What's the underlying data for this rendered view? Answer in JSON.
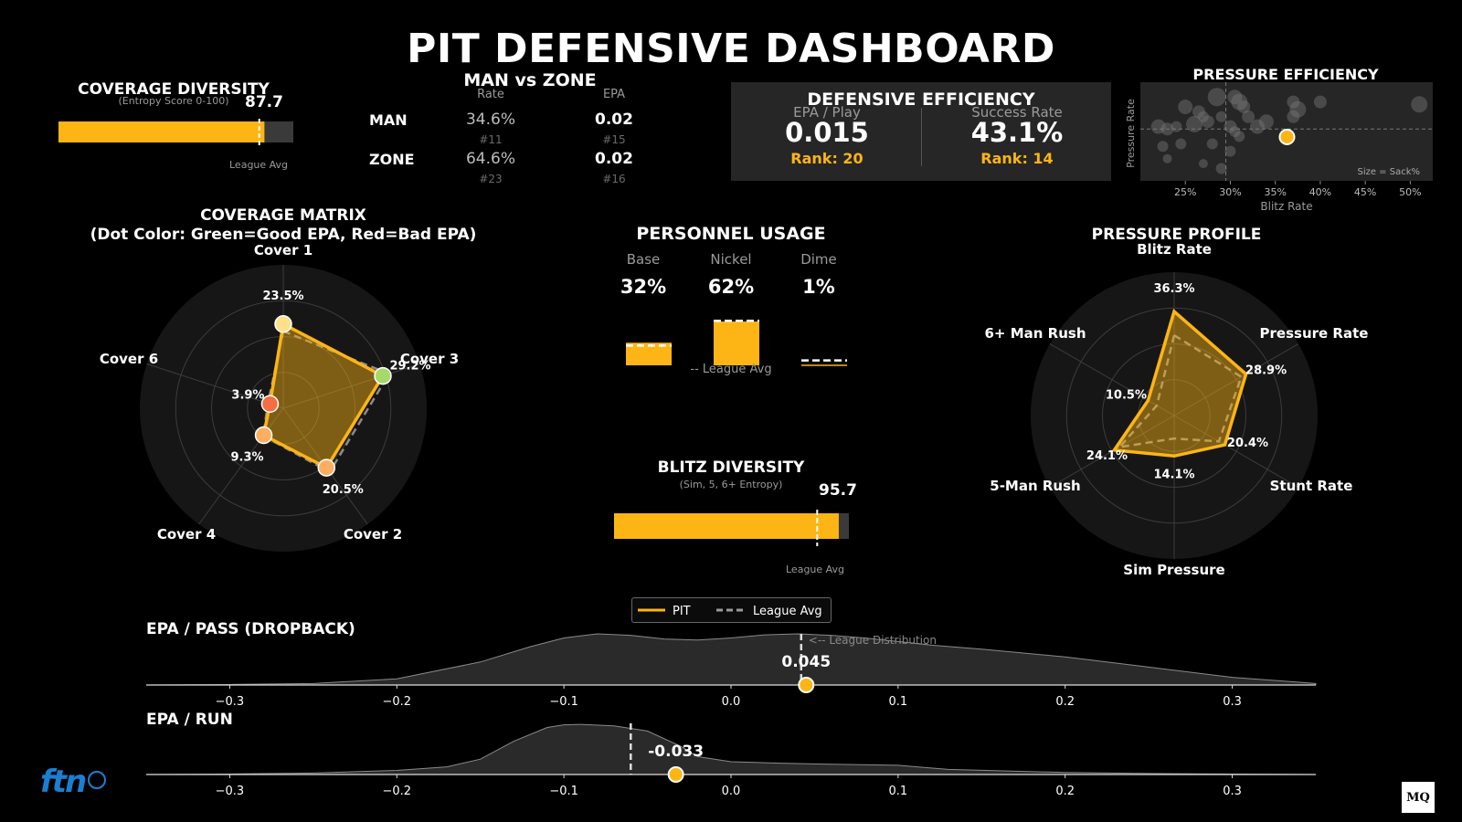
{
  "title": "PIT DEFENSIVE DASHBOARD",
  "colors": {
    "accent": "#FDB515",
    "good": "#a6d96a",
    "bad": "#f46d43",
    "bg": "#000000"
  },
  "coverage_diversity": {
    "title": "COVERAGE DIVERSITY",
    "subtitle": "(Entropy Score 0-100)",
    "value": "87.7",
    "score": 87.7,
    "league_avg": 85.5,
    "league_label": "League Avg"
  },
  "man_zone": {
    "title": "MAN vs ZONE",
    "col_rate": "Rate",
    "col_epa": "EPA",
    "rows": [
      {
        "label": "MAN",
        "rate": "34.6%",
        "rate_rank": "#11",
        "epa": "0.02",
        "epa_rank": "#15"
      },
      {
        "label": "ZONE",
        "rate": "64.6%",
        "rate_rank": "#23",
        "epa": "0.02",
        "epa_rank": "#16"
      }
    ]
  },
  "defensive_efficiency": {
    "title": "DEFENSIVE EFFICIENCY",
    "epa_label": "EPA / Play",
    "epa_value": "0.015",
    "epa_rank": "Rank: 20",
    "sr_label": "Success Rate",
    "sr_value": "43.1%",
    "sr_rank": "Rank: 14"
  },
  "pressure_efficiency": {
    "title": "PRESSURE EFFICIENCY",
    "xlabel": "Blitz Rate",
    "ylabel": "Pressure Rate",
    "note": "Size = Sack%",
    "xticks": [
      "25%",
      "30%",
      "35%",
      "40%",
      "45%",
      "50%"
    ]
  },
  "coverage_matrix": {
    "title": "COVERAGE MATRIX",
    "subtitle": "(Dot Color: Green=Good EPA, Red=Bad EPA)"
  },
  "personnel": {
    "title": "PERSONNEL USAGE",
    "items": [
      {
        "label": "Base",
        "value": "32%"
      },
      {
        "label": "Nickel",
        "value": "62%"
      },
      {
        "label": "Dime",
        "value": "1%"
      }
    ],
    "league_label": "-- League Avg"
  },
  "blitz_diversity": {
    "title": "BLITZ DIVERSITY",
    "subtitle": "(Sim, 5, 6+ Entropy)",
    "value": "95.7",
    "score": 95.7,
    "league_avg": 86.5,
    "league_label": "League Avg"
  },
  "pressure_profile": {
    "title": "PRESSURE PROFILE"
  },
  "legend": {
    "pit": "PIT",
    "league": "League Avg"
  },
  "epa_pass": {
    "title": "EPA / PASS (DROPBACK)",
    "value": "0.045",
    "annotation": "<-- League Distribution"
  },
  "epa_run": {
    "title": "EPA / RUN",
    "value": "-0.033"
  },
  "logos": {
    "ftn": "ftn",
    "mq": "MQ"
  },
  "chart_data": [
    {
      "type": "bar",
      "name": "coverage-diversity",
      "categories": [
        "PIT"
      ],
      "values": [
        87.7
      ],
      "league_avg": 85.5,
      "xlim": [
        0,
        100
      ]
    },
    {
      "type": "scatter",
      "name": "pressure-efficiency",
      "xlabel": "Blitz Rate",
      "ylabel": "Pressure Rate",
      "xlim": [
        20,
        52.5
      ],
      "ylim": [
        20,
        40
      ],
      "ref_x": 29.5,
      "ref_y": 30.5,
      "points": [
        [
          22,
          31
        ],
        [
          23,
          30.5
        ],
        [
          24,
          31
        ],
        [
          25,
          35
        ],
        [
          26,
          31.5
        ],
        [
          26.5,
          34
        ],
        [
          27,
          33
        ],
        [
          27.5,
          32
        ],
        [
          28.5,
          37
        ],
        [
          29,
          33
        ],
        [
          30.5,
          37
        ],
        [
          31,
          36
        ],
        [
          31.5,
          35
        ],
        [
          30,
          31
        ],
        [
          30.5,
          30
        ],
        [
          31,
          29
        ],
        [
          32,
          33
        ],
        [
          33,
          31
        ],
        [
          34,
          32
        ],
        [
          37,
          33
        ],
        [
          37,
          36
        ],
        [
          37.5,
          34.5
        ],
        [
          40,
          36
        ],
        [
          51,
          35.5
        ],
        [
          22.5,
          27
        ],
        [
          24.5,
          27.5
        ],
        [
          28,
          27.5
        ],
        [
          30,
          26
        ],
        [
          27,
          23.5
        ],
        [
          23,
          24.5
        ],
        [
          29,
          22.5
        ]
      ],
      "highlight": {
        "name": "PIT",
        "x": 36.3,
        "y": 28.9
      }
    },
    {
      "type": "radar",
      "name": "coverage-matrix",
      "axes": [
        "Cover 1",
        "Cover 3",
        "Cover 2",
        "Cover 4",
        "Cover 6"
      ],
      "rmax": 40,
      "series": [
        {
          "name": "PIT",
          "values": [
            23.5,
            29.2,
            20.5,
            9.3,
            3.9
          ],
          "labels": [
            "23.5%",
            "29.2%",
            "20.5%",
            "9.3%",
            "3.9%"
          ]
        },
        {
          "name": "League Avg",
          "values": [
            21.5,
            31,
            22,
            9.5,
            4.5
          ]
        }
      ],
      "dot_colors": [
        "#fee08b",
        "#a6d96a",
        "#fdae61",
        "#fdae61",
        "#f46d43"
      ]
    },
    {
      "type": "bar",
      "name": "personnel-usage",
      "categories": [
        "Base",
        "Nickel",
        "Dime"
      ],
      "values": [
        32,
        62,
        1
      ],
      "league_avg": [
        28,
        63,
        7
      ]
    },
    {
      "type": "bar",
      "name": "blitz-diversity",
      "categories": [
        "PIT"
      ],
      "values": [
        95.7
      ],
      "league_avg": 86.5,
      "xlim": [
        0,
        100
      ]
    },
    {
      "type": "radar",
      "name": "pressure-profile",
      "axes": [
        "Blitz Rate",
        "Pressure Rate",
        "Stunt Rate",
        "Sim Pressure",
        "5-Man Rush",
        "6+ Man Rush"
      ],
      "rmax": 50,
      "series": [
        {
          "name": "PIT",
          "values": [
            36.3,
            28.9,
            20.4,
            14.1,
            24.1,
            10.5
          ],
          "labels": [
            "36.3%",
            "28.9%",
            "20.4%",
            "14.1%",
            "24.1%",
            "10.5%"
          ]
        },
        {
          "name": "League Avg",
          "values": [
            28,
            27,
            18,
            8,
            22,
            7
          ]
        }
      ]
    },
    {
      "type": "area",
      "name": "epa-pass-distribution",
      "xlim": [
        -0.35,
        0.35
      ],
      "xticks": [
        "−0.3",
        "−0.2",
        "−0.1",
        "0.0",
        "0.1",
        "0.2",
        "0.3"
      ],
      "tick_values": [
        -0.3,
        -0.2,
        -0.1,
        0.0,
        0.1,
        0.2,
        0.3
      ],
      "x": [
        -0.35,
        -0.3,
        -0.25,
        -0.2,
        -0.15,
        -0.12,
        -0.1,
        -0.08,
        -0.06,
        -0.04,
        -0.02,
        0.0,
        0.02,
        0.04,
        0.06,
        0.08,
        0.1,
        0.12,
        0.15,
        0.2,
        0.25,
        0.3,
        0.35
      ],
      "density": [
        0,
        0.01,
        0.03,
        0.12,
        0.45,
        0.75,
        0.92,
        1.0,
        0.97,
        0.9,
        0.88,
        0.92,
        0.98,
        1.0,
        0.97,
        0.92,
        0.85,
        0.78,
        0.7,
        0.55,
        0.35,
        0.15,
        0.03
      ],
      "league_avg": 0.042,
      "pit": 0.045
    },
    {
      "type": "area",
      "name": "epa-run-distribution",
      "xlim": [
        -0.35,
        0.35
      ],
      "xticks": [
        "−0.3",
        "−0.2",
        "−0.1",
        "0.0",
        "0.1",
        "0.2",
        "0.3"
      ],
      "tick_values": [
        -0.3,
        -0.2,
        -0.1,
        0.0,
        0.1,
        0.2,
        0.3
      ],
      "x": [
        -0.35,
        -0.3,
        -0.25,
        -0.2,
        -0.17,
        -0.15,
        -0.13,
        -0.11,
        -0.1,
        -0.09,
        -0.07,
        -0.05,
        -0.03,
        -0.02,
        0.0,
        0.03,
        0.06,
        0.1,
        0.13,
        0.2,
        0.25,
        0.3,
        0.35
      ],
      "density": [
        0,
        0.01,
        0.03,
        0.08,
        0.15,
        0.3,
        0.65,
        0.92,
        0.97,
        0.98,
        0.95,
        0.85,
        0.55,
        0.35,
        0.25,
        0.22,
        0.2,
        0.18,
        0.1,
        0.04,
        0.02,
        0.01,
        0
      ],
      "league_avg": -0.06,
      "pit": -0.033
    }
  ]
}
